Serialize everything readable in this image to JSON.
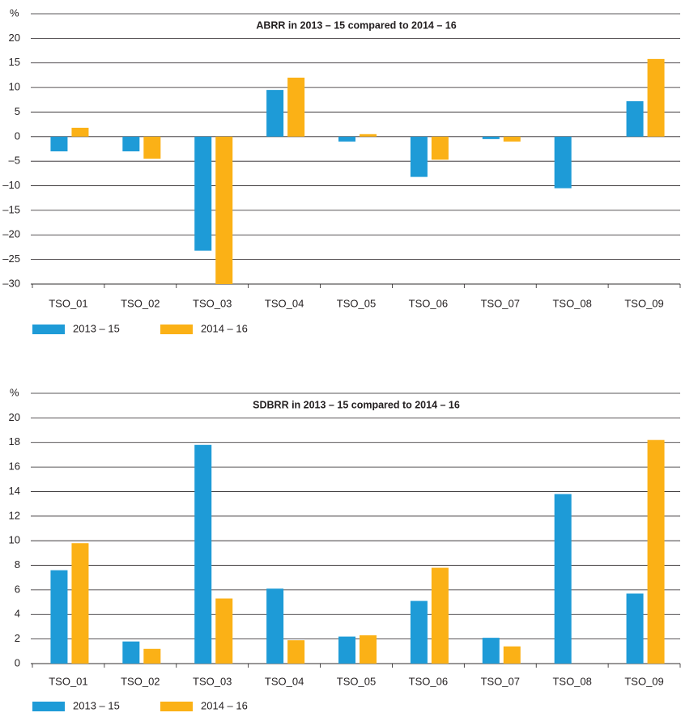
{
  "chart_data": [
    {
      "type": "bar",
      "title": "ABRR in 2013 – 15 compared to 2014 – 16",
      "ylabel": "%",
      "categories": [
        "TSO_01",
        "TSO_02",
        "TSO_03",
        "TSO_04",
        "TSO_05",
        "TSO_06",
        "TSO_07",
        "TSO_08",
        "TSO_09"
      ],
      "series": [
        {
          "name": "2013 – 15",
          "color": "#1e9bd7",
          "values": [
            -3.0,
            -3.0,
            -23.2,
            9.5,
            -1.0,
            -8.2,
            -0.5,
            -10.5,
            7.2
          ]
        },
        {
          "name": "2014 – 16",
          "color": "#fbb116",
          "values": [
            1.8,
            -4.5,
            -30,
            12.0,
            0.5,
            -4.7,
            -1.0,
            null,
            15.8
          ]
        }
      ],
      "ylim": [
        -30,
        25
      ],
      "yticks": [
        {
          "value": -30,
          "label": "–30"
        },
        {
          "value": -25,
          "label": "–25"
        },
        {
          "value": -20,
          "label": "–20"
        },
        {
          "value": -15,
          "label": "–15"
        },
        {
          "value": -10,
          "label": "–10"
        },
        {
          "value": -5,
          "label": "–5"
        },
        0,
        5,
        10,
        15,
        20
      ],
      "grid": true
    },
    {
      "type": "bar",
      "title": "SDBRR in 2013 – 15 compared to 2014 – 16",
      "ylabel": "%",
      "categories": [
        "TSO_01",
        "TSO_02",
        "TSO_03",
        "TSO_04",
        "TSO_05",
        "TSO_06",
        "TSO_07",
        "TSO_08",
        "TSO_09"
      ],
      "series": [
        {
          "name": "2013 – 15",
          "color": "#1e9bd7",
          "values": [
            7.6,
            1.8,
            17.8,
            6.1,
            2.2,
            5.1,
            2.1,
            13.8,
            5.7
          ]
        },
        {
          "name": "2014 – 16",
          "color": "#fbb116",
          "values": [
            9.8,
            1.2,
            5.3,
            1.9,
            2.3,
            7.8,
            1.4,
            null,
            18.2
          ]
        }
      ],
      "ylim": [
        0,
        22
      ],
      "yticks": [
        0,
        2,
        4,
        6,
        8,
        10,
        12,
        14,
        16,
        18,
        20
      ],
      "grid": true
    }
  ]
}
